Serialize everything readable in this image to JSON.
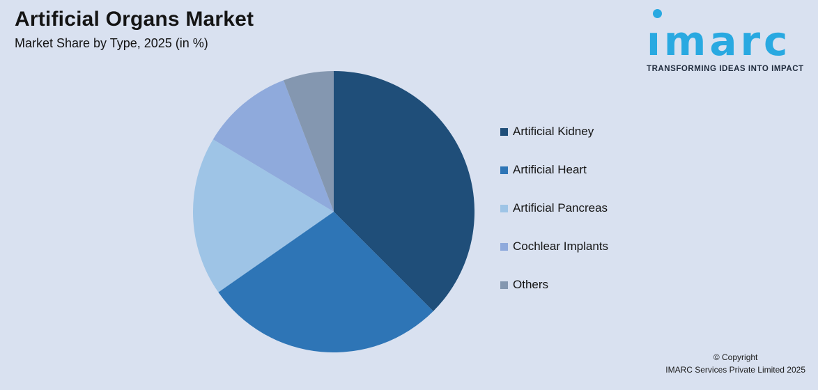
{
  "page": {
    "background": "#D9E1F0"
  },
  "header": {
    "title": "Artificial Organs Market",
    "subtitle": "Market Share by Type, 2025 (in %)"
  },
  "logo": {
    "wordmark": "ımarc",
    "tagline": "TRANSFORMING IDEAS INTO IMPACT",
    "brand_color": "#29A9E1",
    "tagline_color": "#1E2A3C"
  },
  "chart_data": {
    "type": "pie",
    "title": "Artificial Organs Market",
    "subtitle": "Market Share by Type, 2025 (in %)",
    "unit": "%",
    "labels": [
      "Artificial Kidney",
      "Artificial Heart",
      "Artificial Pancreas",
      "Cochlear Implants",
      "Others"
    ],
    "values": [
      37.5,
      27.8,
      18.3,
      10.6,
      5.8
    ],
    "colors": [
      "#1F4E79",
      "#2E75B6",
      "#9EC4E6",
      "#8FAADC",
      "#8497B0"
    ],
    "start_angle_deg": 0,
    "direction": "clockwise",
    "legend_position": "right",
    "data_labels_shown": false
  },
  "footer": {
    "line1": "© Copyright",
    "line2": "IMARC Services Private Limited 2025"
  }
}
